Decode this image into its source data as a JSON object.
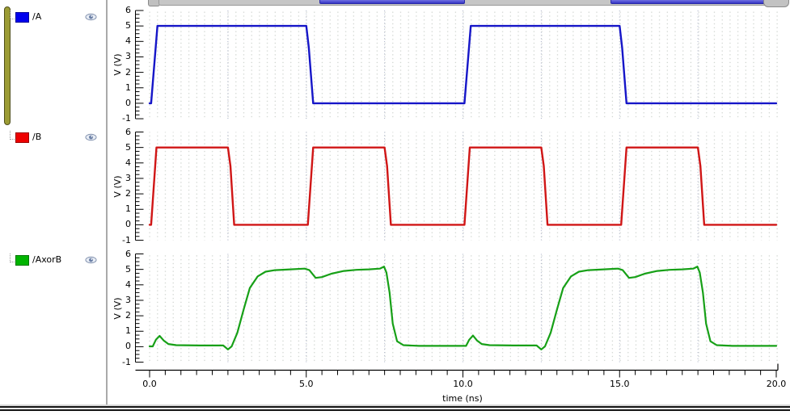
{
  "signal_list": {
    "items": [
      {
        "label": "/A",
        "swatch_color": "#0000ee",
        "trace_color": "#1616c8"
      },
      {
        "label": "/B",
        "swatch_color": "#ee0000",
        "trace_color": "#d01616"
      },
      {
        "label": "/AxorB",
        "swatch_color": "#00b400",
        "trace_color": "#17a017"
      }
    ],
    "eye_icon": "eye-icon"
  },
  "chrome": {
    "accent_olive": "#9c9c35",
    "toolbar_blue": "#3434c4",
    "toolbar_gray": "#c6c6c6"
  },
  "chart_data": {
    "type": "line",
    "title": "",
    "xlabel": "time (ns)",
    "ylabel": "V (V)",
    "xlim": [
      0,
      20
    ],
    "ylim": [
      -1,
      6
    ],
    "grid": "dotted",
    "x_ticks_major": [
      0,
      5,
      10,
      15,
      20
    ],
    "x_tick_labels": [
      "0.0",
      "5.0",
      "10.0",
      "15.0",
      "20.0"
    ],
    "x_minor_step": 0.5,
    "y_tick_labels": [
      "6",
      "5",
      "4",
      "3",
      "2",
      "1",
      "0",
      "-1"
    ],
    "y_ticks": [
      6,
      5,
      4,
      3,
      2,
      1,
      0,
      -1
    ],
    "series": [
      {
        "name": "/A",
        "color": "#1616c8",
        "points": [
          [
            0,
            0
          ],
          [
            0.05,
            0
          ],
          [
            0.25,
            5
          ],
          [
            5.0,
            5
          ],
          [
            5.08,
            3.6
          ],
          [
            5.22,
            0
          ],
          [
            10.0,
            0
          ],
          [
            10.05,
            0
          ],
          [
            10.25,
            5
          ],
          [
            15.0,
            5
          ],
          [
            15.08,
            3.6
          ],
          [
            15.22,
            0
          ],
          [
            20,
            0
          ]
        ]
      },
      {
        "name": "/B",
        "color": "#d01616",
        "points": [
          [
            0,
            0
          ],
          [
            0.05,
            0
          ],
          [
            0.22,
            5
          ],
          [
            2.5,
            5
          ],
          [
            2.58,
            3.8
          ],
          [
            2.7,
            0
          ],
          [
            5.0,
            0
          ],
          [
            5.05,
            0
          ],
          [
            5.22,
            5
          ],
          [
            7.5,
            5
          ],
          [
            7.58,
            3.8
          ],
          [
            7.7,
            0
          ],
          [
            10.0,
            0
          ],
          [
            10.05,
            0
          ],
          [
            10.22,
            5
          ],
          [
            12.5,
            5
          ],
          [
            12.58,
            3.8
          ],
          [
            12.7,
            0
          ],
          [
            15.0,
            0
          ],
          [
            15.05,
            0
          ],
          [
            15.22,
            5
          ],
          [
            17.5,
            5
          ],
          [
            17.58,
            3.8
          ],
          [
            17.7,
            0
          ],
          [
            20,
            0
          ]
        ]
      },
      {
        "name": "/AxorB",
        "color": "#17a017",
        "points": [
          [
            0,
            0.02
          ],
          [
            0.1,
            0.02
          ],
          [
            0.2,
            0.45
          ],
          [
            0.32,
            0.7
          ],
          [
            0.45,
            0.4
          ],
          [
            0.6,
            0.17
          ],
          [
            0.85,
            0.1
          ],
          [
            1.6,
            0.08
          ],
          [
            2.35,
            0.08
          ],
          [
            2.5,
            -0.18
          ],
          [
            2.62,
            0.02
          ],
          [
            2.8,
            0.9
          ],
          [
            3.0,
            2.4
          ],
          [
            3.2,
            3.8
          ],
          [
            3.45,
            4.55
          ],
          [
            3.7,
            4.85
          ],
          [
            4.0,
            4.95
          ],
          [
            4.5,
            5.0
          ],
          [
            4.95,
            5.05
          ],
          [
            5.1,
            4.95
          ],
          [
            5.3,
            4.45
          ],
          [
            5.5,
            4.5
          ],
          [
            5.8,
            4.72
          ],
          [
            6.2,
            4.9
          ],
          [
            6.6,
            4.97
          ],
          [
            7.0,
            5.0
          ],
          [
            7.35,
            5.05
          ],
          [
            7.48,
            5.18
          ],
          [
            7.56,
            4.8
          ],
          [
            7.66,
            3.5
          ],
          [
            7.76,
            1.5
          ],
          [
            7.9,
            0.35
          ],
          [
            8.1,
            0.1
          ],
          [
            8.6,
            0.05
          ],
          [
            9.5,
            0.05
          ],
          [
            10.0,
            0.05
          ],
          [
            10.1,
            0.05
          ],
          [
            10.2,
            0.45
          ],
          [
            10.32,
            0.72
          ],
          [
            10.45,
            0.4
          ],
          [
            10.6,
            0.17
          ],
          [
            10.85,
            0.1
          ],
          [
            11.6,
            0.08
          ],
          [
            12.35,
            0.08
          ],
          [
            12.5,
            -0.18
          ],
          [
            12.62,
            0.02
          ],
          [
            12.8,
            0.9
          ],
          [
            13.0,
            2.4
          ],
          [
            13.2,
            3.8
          ],
          [
            13.45,
            4.55
          ],
          [
            13.7,
            4.85
          ],
          [
            14.0,
            4.95
          ],
          [
            14.5,
            5.0
          ],
          [
            14.95,
            5.05
          ],
          [
            15.1,
            4.95
          ],
          [
            15.3,
            4.45
          ],
          [
            15.5,
            4.5
          ],
          [
            15.8,
            4.72
          ],
          [
            16.2,
            4.9
          ],
          [
            16.6,
            4.97
          ],
          [
            17.0,
            5.0
          ],
          [
            17.35,
            5.05
          ],
          [
            17.48,
            5.18
          ],
          [
            17.56,
            4.8
          ],
          [
            17.66,
            3.5
          ],
          [
            17.76,
            1.5
          ],
          [
            17.9,
            0.35
          ],
          [
            18.1,
            0.1
          ],
          [
            18.6,
            0.05
          ],
          [
            19.5,
            0.05
          ],
          [
            20,
            0.05
          ]
        ]
      }
    ]
  }
}
